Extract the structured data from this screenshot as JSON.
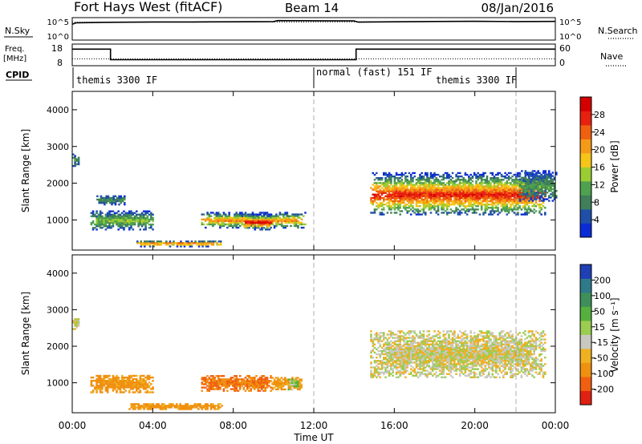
{
  "header": {
    "radar": "Fort Hays West (fitACF)",
    "beam": "Beam 14",
    "date": "08/Jan/2016"
  },
  "strips": {
    "nsky_label": "N.Sky",
    "nsky_ticks": [
      "10^5",
      "10^0"
    ],
    "nsearch_label": "N.Search",
    "nsearch_ticks": [
      "10^5",
      "10^0"
    ],
    "freq_label": "Freq.",
    "freq_unit": "[MHz]",
    "freq_ticks": [
      "18",
      "8"
    ],
    "nave_label": "Nave",
    "nave_ticks": [
      "60",
      "0"
    ],
    "cpid_label": "CPID",
    "cpid_segments": [
      {
        "label": "themis 3300 IF",
        "start_h": 0
      },
      {
        "label": "normal (fast) 151 IF",
        "start_h": 12
      },
      {
        "label": "themis 3300 IF",
        "start_h": 22
      }
    ]
  },
  "axes": {
    "ylabel": "Slant Range [km]",
    "yticks": [
      "4000",
      "3000",
      "2000",
      "1000"
    ],
    "xlabel": "Time UT",
    "xticks": [
      "00:00",
      "04:00",
      "08:00",
      "12:00",
      "16:00",
      "20:00",
      "00:00"
    ]
  },
  "power_scale": {
    "label": "Power [dB]",
    "ticks": [
      "28",
      "24",
      "20",
      "16",
      "12",
      "8",
      "4"
    ],
    "colors": [
      "#0a2bd6",
      "#1f4fa8",
      "#3f7f5a",
      "#4fa04f",
      "#9acd32",
      "#f5c518",
      "#f59a18",
      "#f06010",
      "#e82010",
      "#d40000"
    ]
  },
  "velocity_scale": {
    "label": "Velocity [m s⁻¹]",
    "ticks": [
      "200",
      "100",
      "50",
      "15",
      "-15",
      "-50",
      "-100",
      "-200"
    ],
    "colors": [
      "#1f3fb5",
      "#2e7a8a",
      "#3f8f5a",
      "#55b040",
      "#9acd50",
      "#c8c8c0",
      "#f0b020",
      "#f09010",
      "#f06010",
      "#e02010"
    ]
  },
  "chart_data": [
    {
      "type": "line",
      "title": "N.Sky / N.Search",
      "x_units": "hours UT",
      "series": [
        {
          "name": "N.Sky",
          "x": [
            0,
            0.2,
            2,
            4,
            6,
            8,
            10,
            10.2,
            12,
            14,
            14.2,
            16,
            18,
            20,
            22,
            24
          ],
          "values": [
            4800.0,
            12000.0,
            16000.0,
            20000.0,
            20000.0,
            22000.0,
            25000.0,
            45000.0,
            40000.0,
            36000.0,
            18000.0,
            22000.0,
            26000.0,
            29000.0,
            25000.0,
            28000.0
          ]
        },
        {
          "name": "N.Search",
          "x": [
            0,
            4,
            8,
            12,
            16,
            20,
            24
          ],
          "values": [
            16000.0,
            17000.0,
            19000.0,
            21000.0,
            23000.0,
            24000.0,
            25000.0
          ]
        }
      ],
      "ylim": [
        1,
        100000
      ],
      "yscale": "log"
    },
    {
      "type": "line",
      "title": "Freq. / Nave",
      "x_units": "hours UT",
      "series": [
        {
          "name": "Freq.",
          "unit": "MHz",
          "x": [
            0,
            1.9,
            1.9,
            14.1,
            14.1,
            24
          ],
          "values": [
            16.5,
            16.5,
            10.5,
            10.5,
            16.5,
            16.5
          ]
        },
        {
          "name": "Nave",
          "x": [
            0,
            4,
            8,
            12,
            16,
            20,
            24
          ],
          "values": [
            18,
            18,
            18,
            18,
            18,
            18,
            18
          ]
        }
      ],
      "ylim_freq": [
        8,
        18
      ],
      "ylim_nave": [
        0,
        60
      ]
    },
    {
      "type": "heatmap",
      "title": "Power [dB]",
      "xlabel": "Time UT",
      "ylabel": "Slant Range [km]",
      "x_units": "hours UT",
      "xlim": [
        0,
        24
      ],
      "ylim": [
        180,
        4500
      ],
      "zlim": [
        0,
        30
      ],
      "regions": [
        {
          "t0": 0.0,
          "t1": 0.3,
          "r0": 2450,
          "r1": 2800,
          "peak_db": 8
        },
        {
          "t0": 0.9,
          "t1": 4.0,
          "r0": 720,
          "r1": 1250,
          "peak_db": 13
        },
        {
          "t0": 1.2,
          "t1": 2.6,
          "r0": 1400,
          "r1": 1650,
          "peak_db": 9
        },
        {
          "t0": 6.4,
          "t1": 11.6,
          "r0": 770,
          "r1": 1200,
          "peak_db": 21
        },
        {
          "t0": 8.4,
          "t1": 9.9,
          "r0": 720,
          "r1": 1140,
          "peak_db": 29
        },
        {
          "t0": 3.1,
          "t1": 7.4,
          "r0": 260,
          "r1": 420,
          "peak_db": 24
        },
        {
          "t0": 14.8,
          "t1": 23.5,
          "r0": 1130,
          "r1": 2300,
          "peak_db": 26
        },
        {
          "t0": 22.2,
          "t1": 24.0,
          "r0": 1500,
          "r1": 2350,
          "peak_db": 10
        }
      ]
    },
    {
      "type": "heatmap",
      "title": "Velocity [m s⁻¹]",
      "xlabel": "Time UT",
      "ylabel": "Slant Range [km]",
      "x_units": "hours UT",
      "xlim": [
        0,
        24
      ],
      "ylim": [
        180,
        4500
      ],
      "zlim": [
        -200,
        200
      ],
      "regions": [
        {
          "t0": 0.0,
          "t1": 0.3,
          "r0": 2450,
          "r1": 2750,
          "velocity": 0
        },
        {
          "t0": 0.9,
          "t1": 4.0,
          "r0": 720,
          "r1": 1200,
          "velocity": -45
        },
        {
          "t0": 6.4,
          "t1": 9.9,
          "r0": 760,
          "r1": 1200,
          "velocity": -75
        },
        {
          "t0": 9.9,
          "t1": 11.4,
          "r0": 800,
          "r1": 1150,
          "velocity": -40
        },
        {
          "t0": 10.7,
          "t1": 11.2,
          "r0": 800,
          "r1": 1100,
          "velocity": 25
        },
        {
          "t0": 2.8,
          "t1": 7.5,
          "r0": 260,
          "r1": 420,
          "velocity": -45
        },
        {
          "t0": 14.8,
          "t1": 23.5,
          "r0": 1130,
          "r1": 2400,
          "velocity": 0
        }
      ]
    }
  ]
}
